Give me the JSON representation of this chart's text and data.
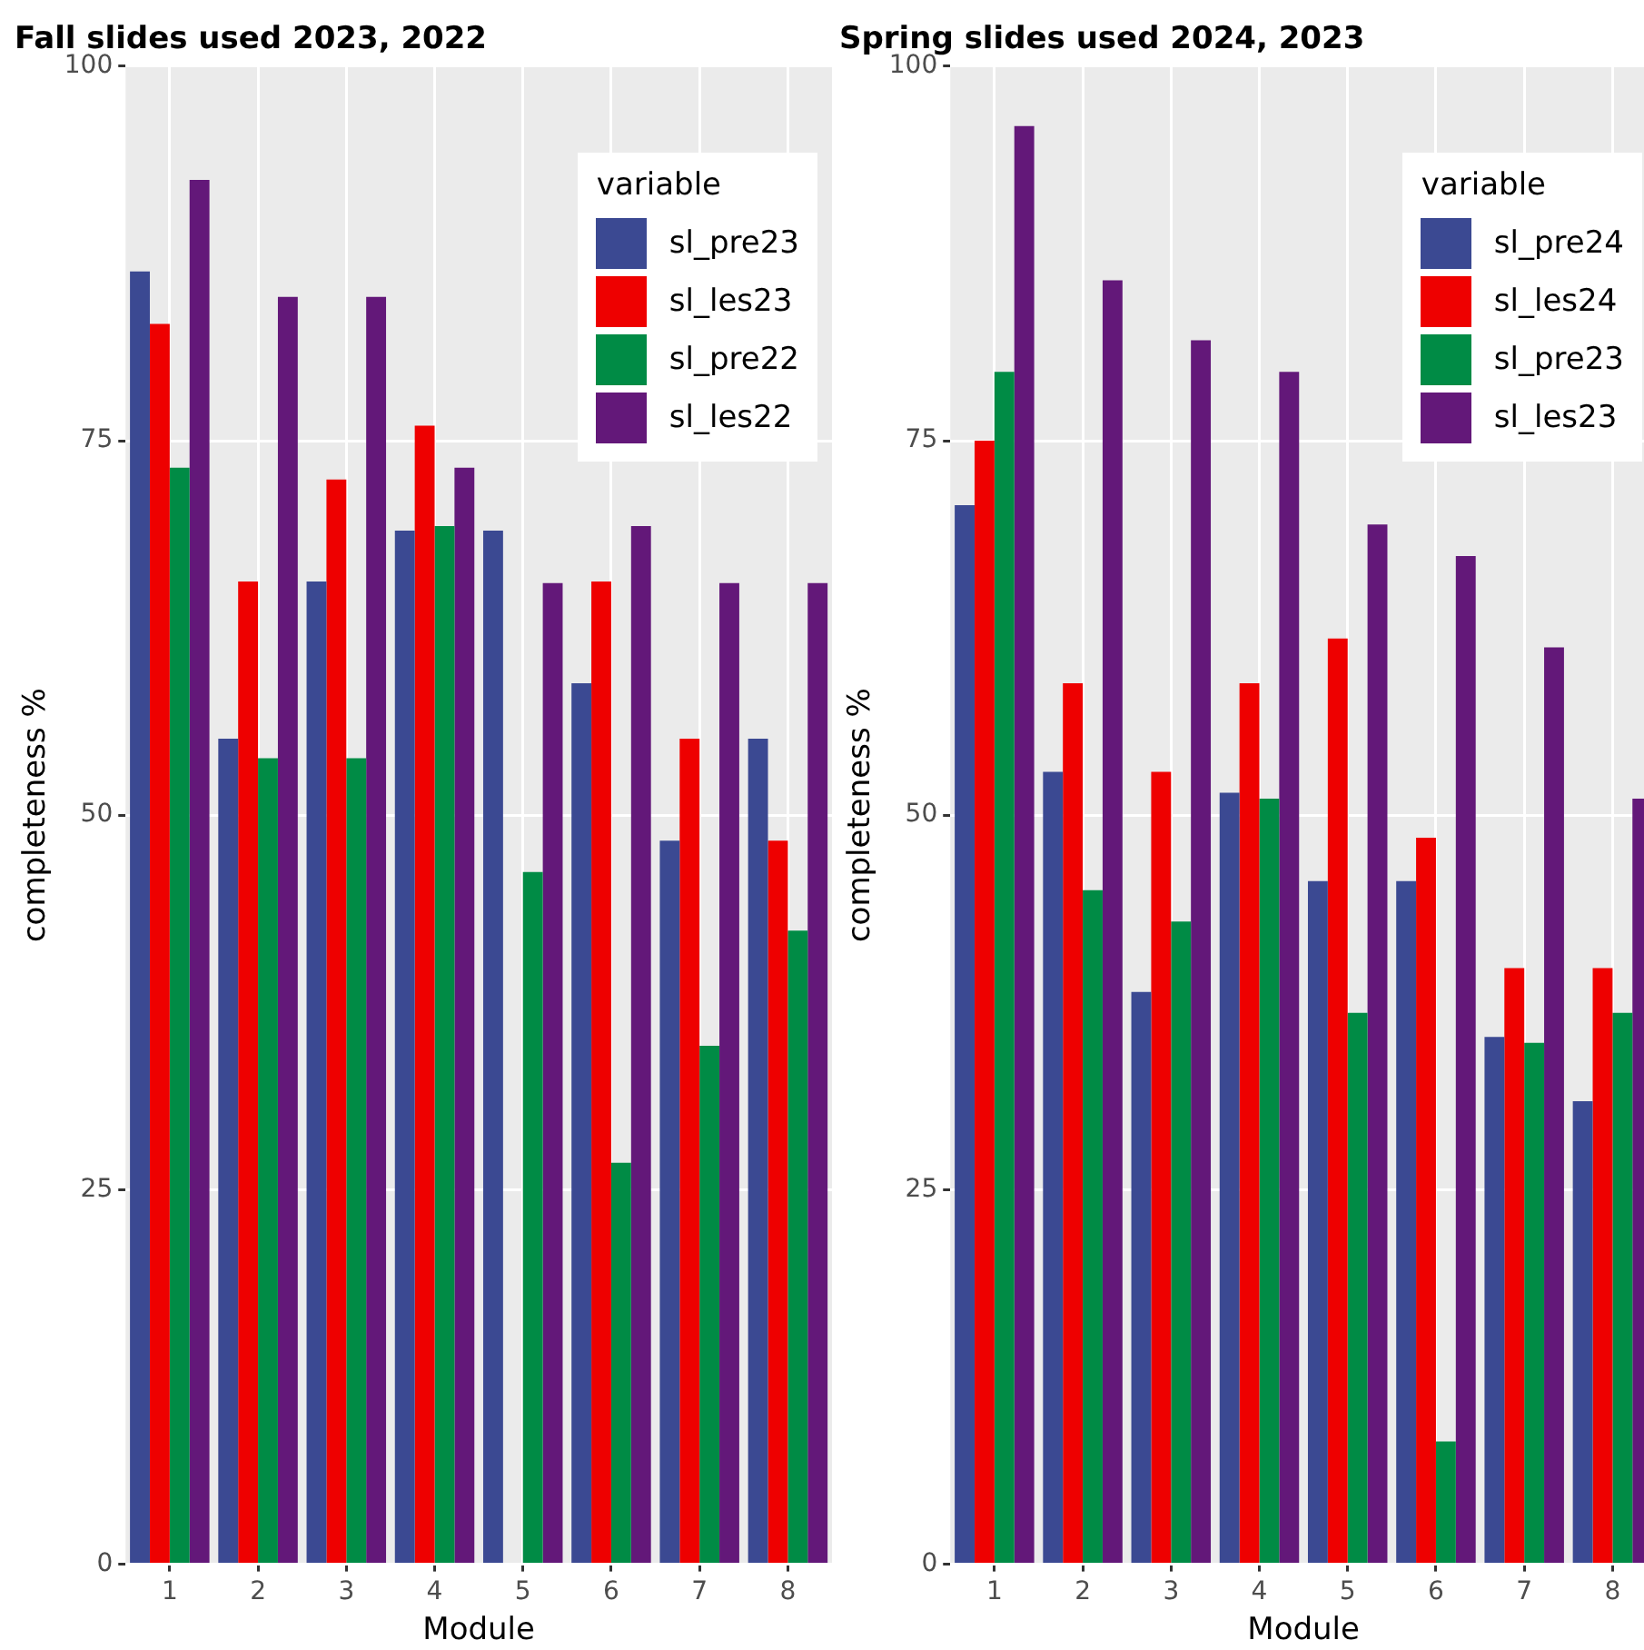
{
  "chart_data": [
    {
      "type": "bar",
      "title": "Fall slides used 2023, 2022",
      "xlabel": "Module",
      "ylabel": "completeness %",
      "legend_title": "variable",
      "categories": [
        "1",
        "2",
        "3",
        "4",
        "5",
        "6",
        "7",
        "8"
      ],
      "series": [
        {
          "name": "sl_pre23",
          "color": "#3b4992",
          "values": [
            86.3,
            55.1,
            65.6,
            69.0,
            69.0,
            58.8,
            48.3,
            55.1
          ]
        },
        {
          "name": "sl_les23",
          "color": "#ee0000",
          "values": [
            82.8,
            65.6,
            72.4,
            76.0,
            null,
            65.6,
            55.1,
            48.3
          ]
        },
        {
          "name": "sl_pre22",
          "color": "#008b45",
          "values": [
            73.2,
            53.8,
            53.8,
            69.3,
            46.2,
            26.8,
            34.6,
            42.3
          ]
        },
        {
          "name": "sl_les22",
          "color": "#631879",
          "values": [
            92.4,
            84.6,
            84.6,
            73.2,
            65.5,
            69.3,
            65.5,
            65.5
          ]
        }
      ],
      "ylim": [
        0,
        100
      ],
      "yticks": [
        0,
        25,
        50,
        75,
        100
      ],
      "grid": true,
      "legend": "top right"
    },
    {
      "type": "bar",
      "title": "Spring slides used 2024, 2023",
      "xlabel": "Module",
      "ylabel": "completeness %",
      "legend_title": "variable",
      "categories": [
        "1",
        "2",
        "3",
        "4",
        "5",
        "6",
        "7",
        "8"
      ],
      "series": [
        {
          "name": "sl_pre24",
          "color": "#3b4992",
          "values": [
            70.7,
            52.9,
            38.2,
            51.5,
            45.6,
            45.6,
            35.2,
            30.9
          ]
        },
        {
          "name": "sl_les24",
          "color": "#ee0000",
          "values": [
            75.0,
            58.8,
            52.9,
            58.8,
            61.8,
            48.5,
            39.8,
            39.8
          ]
        },
        {
          "name": "sl_pre23",
          "color": "#008b45",
          "values": [
            79.6,
            45.0,
            42.9,
            51.1,
            36.8,
            8.2,
            34.8,
            36.8
          ]
        },
        {
          "name": "sl_les23",
          "color": "#631879",
          "values": [
            96.0,
            85.7,
            81.7,
            79.6,
            69.4,
            67.3,
            61.2,
            51.1
          ]
        }
      ],
      "ylim": [
        0,
        100
      ],
      "yticks": [
        0,
        25,
        50,
        75,
        100
      ],
      "grid": true,
      "legend": "top right"
    }
  ]
}
